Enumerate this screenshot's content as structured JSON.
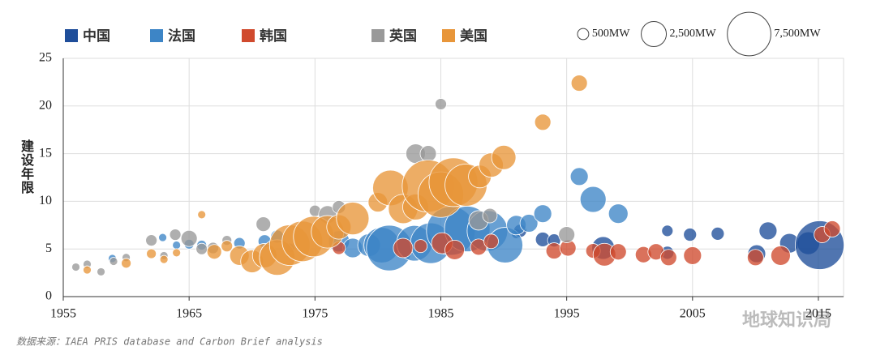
{
  "chart_data": {
    "type": "scatter",
    "y_label": "建设年限",
    "source": "数据来源：IAEA PRIS database and Carbon Brief analysis",
    "watermark": "地球知识局",
    "xlim": [
      1955,
      2017
    ],
    "xticks": [
      1955,
      1965,
      1975,
      1985,
      1995,
      2005,
      2015
    ],
    "ylim": [
      0,
      25
    ],
    "yticks": [
      0,
      5,
      10,
      15,
      20,
      25
    ],
    "grid": true,
    "size_legend": [
      {
        "value": 500,
        "label": "500MW"
      },
      {
        "value": 2500,
        "label": "2,500MW"
      },
      {
        "value": 7500,
        "label": "7,500MW"
      }
    ],
    "series": [
      {
        "name": "中国",
        "color": "#1f4e9a",
        "x": [
          1991.0,
          1991.3,
          1993.1,
          1994.0,
          1997.9,
          2003.0,
          2003.0,
          2004.8,
          2007.0,
          2010.1,
          2011.0,
          2012.7,
          2014.2,
          2015.1
        ],
        "values": [
          6.6,
          6.9,
          6.0,
          5.9,
          5.1,
          6.9,
          4.6,
          6.5,
          6.6,
          4.5,
          6.9,
          5.6,
          5.6,
          5.4
        ],
        "sizes": [
          375,
          670,
          840,
          670,
          2040,
          510,
          670,
          670,
          670,
          1260,
          1260,
          1500,
          2040,
          9400
        ]
      },
      {
        "name": "法国",
        "color": "#3d85c6",
        "x": [
          1958.9,
          1962.9,
          1964.0,
          1965.0,
          1966.0,
          1969.0,
          1971.0,
          1972.0,
          1973.0,
          1976.9,
          1978.0,
          1979.3,
          1980.3,
          1980.9,
          1982.9,
          1984.2,
          1985.8,
          1987.1,
          1988.7,
          1990.1,
          1991.0,
          1992.0,
          1993.1,
          1996.0,
          1997.1,
          1999.1
        ],
        "values": [
          4.0,
          6.2,
          5.4,
          5.5,
          5.4,
          5.6,
          5.8,
          6.3,
          5.1,
          5.8,
          5.1,
          5.4,
          5.4,
          5.1,
          5.6,
          5.6,
          6.9,
          7.1,
          6.9,
          5.4,
          7.5,
          7.7,
          8.7,
          12.6,
          10.2,
          8.7
        ],
        "sizes": [
          260,
          260,
          260,
          375,
          375,
          510,
          670,
          670,
          375,
          1760,
          1500,
          2040,
          5000,
          8200,
          5000,
          6500,
          9400,
          8200,
          6500,
          5000,
          1500,
          1260,
          1260,
          1260,
          2660,
          1500
        ]
      },
      {
        "name": "韩国",
        "color": "#d04a2e",
        "x": [
          1976.9,
          1982.0,
          1983.4,
          1985.1,
          1986.1,
          1988.0,
          1989.0,
          1994.0,
          1995.1,
          1997.1,
          1998.0,
          1999.1,
          2001.1,
          2002.1,
          2003.1,
          2005.0,
          2010.0,
          2012.0,
          2015.3,
          2016.1
        ],
        "values": [
          5.1,
          5.1,
          5.3,
          5.6,
          4.9,
          5.2,
          5.8,
          4.8,
          5.1,
          4.8,
          4.4,
          4.7,
          4.4,
          4.7,
          4.1,
          4.3,
          4.1,
          4.3,
          6.5,
          7.1
        ],
        "sizes": [
          670,
          1500,
          670,
          1760,
          1500,
          1040,
          840,
          1040,
          1040,
          840,
          2040,
          1040,
          1040,
          1040,
          1040,
          1260,
          1040,
          1500,
          1040,
          1040
        ]
      },
      {
        "name": "英国",
        "color": "#999999",
        "x": [
          1956.0,
          1956.9,
          1958.0,
          1959.0,
          1960.0,
          1962.0,
          1963.0,
          1963.9,
          1965.0,
          1966.0,
          1966.9,
          1968.0,
          1970.9,
          1975.0,
          1976.0,
          1976.9,
          1983.0,
          1984.0,
          1985.0,
          1988.0,
          1988.9,
          1995.0
        ],
        "values": [
          3.1,
          3.4,
          2.6,
          3.7,
          4.1,
          5.9,
          4.3,
          6.5,
          6.1,
          5.0,
          5.1,
          5.9,
          7.6,
          9.0,
          8.6,
          9.4,
          15.0,
          15.0,
          20.2,
          8.0,
          8.5,
          6.5
        ],
        "sizes": [
          260,
          260,
          260,
          260,
          260,
          510,
          260,
          510,
          1040,
          510,
          510,
          375,
          840,
          510,
          1260,
          670,
          1500,
          1040,
          510,
          1500,
          840,
          1040
        ]
      },
      {
        "name": "美国",
        "color": "#e8963a",
        "x": [
          1956.9,
          1960.0,
          1962.0,
          1963.0,
          1964.0,
          1966.0,
          1967.0,
          1968.0,
          1969.0,
          1970.0,
          1971.0,
          1972.0,
          1973.0,
          1974.0,
          1974.9,
          1976.0,
          1976.9,
          1978.0,
          1980.0,
          1981.0,
          1982.0,
          1983.0,
          1984.0,
          1985.0,
          1986.0,
          1987.0,
          1988.1,
          1989.0,
          1990.0,
          1993.1,
          1996.0
        ],
        "values": [
          2.8,
          3.5,
          4.5,
          3.9,
          4.6,
          8.6,
          4.7,
          5.3,
          4.3,
          3.7,
          4.3,
          4.1,
          5.4,
          5.8,
          6.3,
          6.8,
          7.3,
          8.2,
          9.9,
          11.4,
          9.2,
          9.4,
          11.6,
          10.7,
          12.0,
          11.7,
          12.6,
          13.8,
          14.6,
          18.3,
          22.4
        ],
        "sizes": [
          260,
          375,
          375,
          260,
          260,
          260,
          840,
          510,
          1500,
          2040,
          2340,
          5000,
          6500,
          6500,
          6500,
          4200,
          2340,
          4200,
          1500,
          5000,
          3400,
          2660,
          10700,
          8200,
          9400,
          7000,
          2040,
          2340,
          2340,
          1040,
          1040
        ]
      }
    ]
  }
}
